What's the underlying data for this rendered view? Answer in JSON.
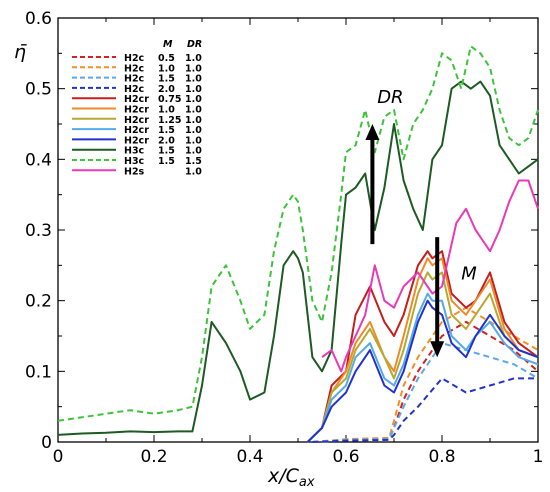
{
  "chart_data": {
    "type": "line",
    "xlabel": "x/C",
    "xlabel_sub": "ax",
    "ylabel": "η̄",
    "xlim": [
      0,
      1
    ],
    "ylim": [
      0,
      0.6
    ],
    "xticks": [
      "0",
      "0.2",
      "0.4",
      "0.6",
      "0.8",
      "1"
    ],
    "yticks": [
      "0",
      "0.1",
      "0.2",
      "0.3",
      "0.4",
      "0.5",
      "0.6"
    ],
    "grid": false,
    "legend_position": "top-left",
    "legend_headers": {
      "m": "M",
      "dr": "DR"
    },
    "annotations": [
      {
        "text": "DR",
        "x": 0.665,
        "y": 0.48
      },
      {
        "text": "M",
        "x": 0.84,
        "y": 0.23
      }
    ],
    "arrows": [
      {
        "name": "dr-arrow",
        "from": [
          0.655,
          0.28
        ],
        "to": [
          0.655,
          0.45
        ]
      },
      {
        "name": "m-arrow",
        "from": [
          0.79,
          0.29
        ],
        "to": [
          0.79,
          0.12
        ]
      }
    ],
    "series": [
      {
        "name": "H2c",
        "m": "0.5",
        "dr": "1.0",
        "color": "#d42020",
        "dash": true,
        "x": [
          0.53,
          0.6,
          0.69,
          0.7,
          0.72,
          0.75,
          0.8,
          0.85,
          0.9,
          0.95,
          1.0
        ],
        "y": [
          0,
          0.003,
          0.004,
          0.02,
          0.06,
          0.1,
          0.15,
          0.17,
          0.15,
          0.13,
          0.1
        ]
      },
      {
        "name": "H2c",
        "m": "1.0",
        "dr": "1.0",
        "color": "#f0902a",
        "dash": true,
        "x": [
          0.53,
          0.6,
          0.69,
          0.7,
          0.72,
          0.75,
          0.8,
          0.85,
          0.9,
          0.95,
          1.0
        ],
        "y": [
          0,
          0.004,
          0.006,
          0.03,
          0.08,
          0.12,
          0.17,
          0.19,
          0.17,
          0.15,
          0.13
        ]
      },
      {
        "name": "H2c",
        "m": "1.5",
        "dr": "1.0",
        "color": "#5aa8e6",
        "dash": true,
        "x": [
          0.53,
          0.6,
          0.69,
          0.7,
          0.72,
          0.75,
          0.8,
          0.85,
          0.9,
          0.95,
          1.0
        ],
        "y": [
          0,
          0.003,
          0.004,
          0.02,
          0.05,
          0.09,
          0.14,
          0.13,
          0.12,
          0.11,
          0.09
        ]
      },
      {
        "name": "H2c",
        "m": "2.0",
        "dr": "1.0",
        "color": "#2233cc",
        "dash": true,
        "x": [
          0.53,
          0.6,
          0.69,
          0.7,
          0.72,
          0.75,
          0.8,
          0.85,
          0.9,
          0.95,
          1.0
        ],
        "y": [
          0,
          0.002,
          0.003,
          0.01,
          0.03,
          0.05,
          0.09,
          0.07,
          0.08,
          0.09,
          0.09
        ]
      },
      {
        "name": "H2cr",
        "m": "0.75",
        "dr": "1.0",
        "color": "#c41e1e",
        "dash": false,
        "x": [
          0.52,
          0.55,
          0.57,
          0.6,
          0.62,
          0.65,
          0.68,
          0.7,
          0.72,
          0.75,
          0.77,
          0.78,
          0.8,
          0.82,
          0.85,
          0.87,
          0.9,
          0.93,
          0.96,
          1.0
        ],
        "y": [
          0,
          0.02,
          0.08,
          0.1,
          0.18,
          0.22,
          0.17,
          0.15,
          0.18,
          0.25,
          0.27,
          0.26,
          0.27,
          0.21,
          0.19,
          0.2,
          0.24,
          0.17,
          0.14,
          0.12
        ]
      },
      {
        "name": "H2cr",
        "m": "1.0",
        "dr": "1.0",
        "color": "#ef8a2a",
        "dash": false,
        "x": [
          0.52,
          0.55,
          0.57,
          0.6,
          0.62,
          0.65,
          0.68,
          0.7,
          0.72,
          0.75,
          0.77,
          0.78,
          0.8,
          0.82,
          0.85,
          0.87,
          0.9,
          0.93,
          0.96,
          1.0
        ],
        "y": [
          0,
          0.02,
          0.07,
          0.1,
          0.14,
          0.17,
          0.12,
          0.1,
          0.15,
          0.23,
          0.26,
          0.25,
          0.26,
          0.2,
          0.18,
          0.2,
          0.23,
          0.16,
          0.13,
          0.12
        ]
      },
      {
        "name": "H2cr",
        "m": "1.25",
        "dr": "1.0",
        "color": "#b8a832",
        "dash": false,
        "x": [
          0.52,
          0.55,
          0.57,
          0.6,
          0.62,
          0.65,
          0.68,
          0.7,
          0.72,
          0.75,
          0.77,
          0.78,
          0.8,
          0.82,
          0.85,
          0.87,
          0.9,
          0.93,
          0.96,
          1.0
        ],
        "y": [
          0,
          0.02,
          0.07,
          0.09,
          0.13,
          0.16,
          0.12,
          0.09,
          0.13,
          0.21,
          0.24,
          0.23,
          0.24,
          0.18,
          0.16,
          0.18,
          0.21,
          0.15,
          0.13,
          0.12
        ]
      },
      {
        "name": "H2cr",
        "m": "1.5",
        "dr": "1.0",
        "color": "#55aae8",
        "dash": false,
        "x": [
          0.52,
          0.55,
          0.57,
          0.6,
          0.62,
          0.65,
          0.68,
          0.7,
          0.72,
          0.75,
          0.77,
          0.78,
          0.8,
          0.82,
          0.85,
          0.87,
          0.9,
          0.93,
          0.96,
          1.0
        ],
        "y": [
          0,
          0.02,
          0.06,
          0.08,
          0.12,
          0.14,
          0.09,
          0.08,
          0.11,
          0.18,
          0.21,
          0.2,
          0.2,
          0.15,
          0.13,
          0.15,
          0.17,
          0.14,
          0.12,
          0.11
        ]
      },
      {
        "name": "H2cr",
        "m": "2.0",
        "dr": "1.0",
        "color": "#2233cc",
        "dash": false,
        "x": [
          0.52,
          0.55,
          0.57,
          0.6,
          0.62,
          0.65,
          0.68,
          0.7,
          0.72,
          0.75,
          0.77,
          0.78,
          0.8,
          0.82,
          0.85,
          0.87,
          0.9,
          0.93,
          0.96,
          1.0
        ],
        "y": [
          0,
          0.02,
          0.05,
          0.07,
          0.1,
          0.13,
          0.08,
          0.07,
          0.1,
          0.17,
          0.2,
          0.19,
          0.18,
          0.14,
          0.12,
          0.15,
          0.18,
          0.15,
          0.13,
          0.12
        ]
      },
      {
        "name": "H3c",
        "m": "1.5",
        "dr": "1.0",
        "color": "#1e5a23",
        "dash": false,
        "x": [
          0,
          0.05,
          0.1,
          0.15,
          0.2,
          0.25,
          0.28,
          0.3,
          0.32,
          0.35,
          0.38,
          0.4,
          0.43,
          0.45,
          0.47,
          0.49,
          0.5,
          0.51,
          0.53,
          0.55,
          0.57,
          0.59,
          0.6,
          0.62,
          0.64,
          0.66,
          0.68,
          0.7,
          0.72,
          0.74,
          0.76,
          0.78,
          0.8,
          0.82,
          0.84,
          0.86,
          0.88,
          0.9,
          0.92,
          0.94,
          0.96,
          0.98,
          1.0
        ],
        "y": [
          0.01,
          0.012,
          0.013,
          0.015,
          0.014,
          0.015,
          0.015,
          0.08,
          0.17,
          0.14,
          0.1,
          0.06,
          0.07,
          0.15,
          0.25,
          0.27,
          0.26,
          0.24,
          0.12,
          0.1,
          0.13,
          0.28,
          0.35,
          0.36,
          0.38,
          0.3,
          0.36,
          0.45,
          0.37,
          0.33,
          0.3,
          0.4,
          0.42,
          0.5,
          0.51,
          0.5,
          0.51,
          0.49,
          0.42,
          0.4,
          0.38,
          0.39,
          0.4
        ]
      },
      {
        "name": "H3c",
        "m": "1.5",
        "dr": "1.5",
        "color": "#3ec23e",
        "dash": true,
        "x": [
          0,
          0.05,
          0.1,
          0.15,
          0.2,
          0.25,
          0.28,
          0.3,
          0.32,
          0.35,
          0.38,
          0.4,
          0.43,
          0.45,
          0.47,
          0.49,
          0.5,
          0.51,
          0.53,
          0.55,
          0.57,
          0.59,
          0.6,
          0.62,
          0.64,
          0.66,
          0.68,
          0.7,
          0.72,
          0.74,
          0.76,
          0.78,
          0.8,
          0.82,
          0.84,
          0.86,
          0.88,
          0.9,
          0.92,
          0.94,
          0.96,
          0.98,
          1.0
        ],
        "y": [
          0.03,
          0.035,
          0.04,
          0.045,
          0.04,
          0.045,
          0.05,
          0.12,
          0.22,
          0.25,
          0.2,
          0.16,
          0.18,
          0.27,
          0.33,
          0.35,
          0.34,
          0.3,
          0.2,
          0.17,
          0.24,
          0.35,
          0.41,
          0.42,
          0.47,
          0.41,
          0.46,
          0.47,
          0.4,
          0.45,
          0.47,
          0.5,
          0.55,
          0.54,
          0.5,
          0.56,
          0.55,
          0.53,
          0.47,
          0.43,
          0.42,
          0.43,
          0.47
        ]
      },
      {
        "name": "H2s",
        "m": "",
        "dr": "1.0",
        "color": "#e83ab8",
        "dash": false,
        "x": [
          0.55,
          0.57,
          0.59,
          0.6,
          0.62,
          0.64,
          0.66,
          0.68,
          0.7,
          0.72,
          0.75,
          0.78,
          0.8,
          0.83,
          0.85,
          0.87,
          0.89,
          0.9,
          0.92,
          0.94,
          0.96,
          0.98,
          1.0
        ],
        "y": [
          0.12,
          0.13,
          0.1,
          0.12,
          0.15,
          0.18,
          0.25,
          0.2,
          0.19,
          0.22,
          0.24,
          0.21,
          0.22,
          0.31,
          0.33,
          0.3,
          0.28,
          0.27,
          0.3,
          0.34,
          0.37,
          0.37,
          0.33
        ]
      }
    ]
  }
}
